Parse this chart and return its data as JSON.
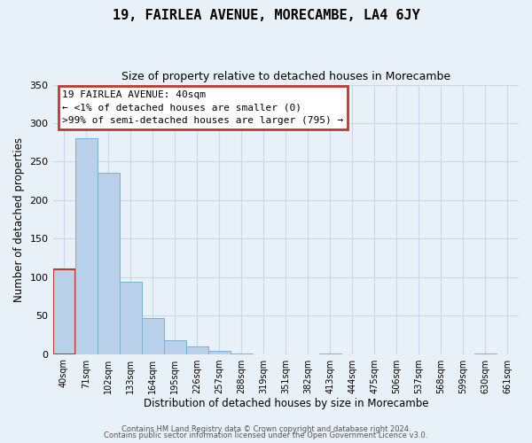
{
  "title": "19, FAIRLEA AVENUE, MORECAMBE, LA4 6JY",
  "subtitle": "Size of property relative to detached houses in Morecambe",
  "xlabel": "Distribution of detached houses by size in Morecambe",
  "ylabel": "Number of detached properties",
  "bar_labels": [
    "40sqm",
    "71sqm",
    "102sqm",
    "133sqm",
    "164sqm",
    "195sqm",
    "226sqm",
    "257sqm",
    "288sqm",
    "319sqm",
    "351sqm",
    "382sqm",
    "413sqm",
    "444sqm",
    "475sqm",
    "506sqm",
    "537sqm",
    "568sqm",
    "599sqm",
    "630sqm",
    "661sqm"
  ],
  "bar_values": [
    110,
    280,
    235,
    94,
    47,
    18,
    10,
    4,
    1,
    0,
    0,
    0,
    1,
    0,
    0,
    0,
    0,
    0,
    0,
    1,
    0
  ],
  "bar_color": "#b8d0ea",
  "bar_edge_color": "#7aafd4",
  "highlight_index": 0,
  "highlight_bar_edge_color": "#c0392b",
  "annotation_title": "19 FAIRLEA AVENUE: 40sqm",
  "annotation_line1": "← <1% of detached houses are smaller (0)",
  "annotation_line2": ">99% of semi-detached houses are larger (795) →",
  "annotation_box_facecolor": "#ffffff",
  "annotation_border_color": "#c0392b",
  "ylim": [
    0,
    350
  ],
  "yticks": [
    0,
    50,
    100,
    150,
    200,
    250,
    300,
    350
  ],
  "grid_color": "#c8d8e8",
  "bg_color": "#e8f0f8",
  "title_fontsize": 11,
  "subtitle_fontsize": 9,
  "footnote1": "Contains HM Land Registry data © Crown copyright and database right 2024.",
  "footnote2": "Contains public sector information licensed under the Open Government Licence v3.0."
}
